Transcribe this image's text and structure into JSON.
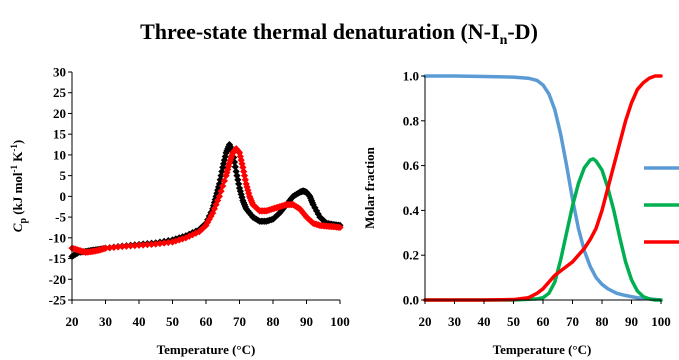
{
  "figure": {
    "title_main": "Three-state thermal denaturation (N-I",
    "title_sub": "n",
    "title_end": "-D)"
  },
  "chart_data": [
    {
      "type": "scatter",
      "xlabel": "Temperature (°C)",
      "ylabel": {
        "c": "C",
        "p": "p",
        "rest": " (kJ mol",
        "sup1": "-1",
        "mid": " K",
        "sup2": "-1",
        "close": ")"
      },
      "xlim": [
        20,
        100
      ],
      "ylim": [
        -25,
        30
      ],
      "xticks": [
        20,
        30,
        40,
        50,
        60,
        70,
        80,
        90,
        100
      ],
      "yticks": [
        30,
        25,
        20,
        15,
        10,
        5,
        0,
        -5,
        -10,
        -15,
        -20,
        -25
      ],
      "grid": false,
      "series": [
        {
          "color": "#000000",
          "marker": "diamond",
          "x": [
            20,
            22,
            24,
            26,
            28,
            30,
            35,
            40,
            45,
            50,
            54,
            58,
            60,
            62,
            63,
            64,
            65,
            66,
            67,
            68,
            69,
            70,
            71,
            72,
            74,
            76,
            78,
            80,
            82,
            84,
            86,
            88,
            89,
            90,
            91,
            92,
            94,
            96,
            98,
            100
          ],
          "y": [
            -14.5,
            -13.5,
            -13.3,
            -13,
            -12.8,
            -12.5,
            -12,
            -11.6,
            -11.2,
            -10.5,
            -9.5,
            -8,
            -6.5,
            -3,
            0,
            3,
            7,
            10.5,
            12.5,
            10.5,
            6,
            2,
            -1,
            -3,
            -5,
            -6,
            -6,
            -5.5,
            -4,
            -2,
            0,
            1,
            1.3,
            1,
            0,
            -2,
            -5,
            -6.5,
            -6.8,
            -7
          ]
        },
        {
          "color": "#ff0000",
          "marker": "diamond",
          "x": [
            20,
            22,
            24,
            26,
            28,
            30,
            35,
            40,
            45,
            50,
            54,
            58,
            60,
            62,
            64,
            66,
            67,
            68,
            69,
            70,
            71,
            72,
            73,
            74,
            76,
            78,
            80,
            82,
            84,
            86,
            88,
            90,
            92,
            94,
            96,
            98,
            100
          ],
          "y": [
            -12.5,
            -13,
            -13.5,
            -13.3,
            -13,
            -12.5,
            -12.1,
            -11.8,
            -11.5,
            -11,
            -10,
            -8.5,
            -7,
            -4,
            0,
            5,
            8,
            10.5,
            11.5,
            10.5,
            7,
            3,
            0,
            -2,
            -3.5,
            -3.5,
            -3,
            -2.5,
            -2,
            -2,
            -3,
            -5,
            -6.5,
            -7,
            -7.2,
            -7.3,
            -7.5
          ]
        }
      ]
    },
    {
      "type": "line",
      "xlabel": "Temperature (°C)",
      "ylabel": "Molar fraction",
      "xlim": [
        20,
        100
      ],
      "ylim": [
        0,
        1
      ],
      "xticks": [
        20,
        30,
        40,
        50,
        60,
        70,
        80,
        90,
        100
      ],
      "yticks": [
        "0.0",
        "0.2",
        "0.4",
        "0.6",
        "0.8",
        "1.0"
      ],
      "grid": false,
      "legend": "right",
      "series": [
        {
          "color": "#5b9bd5",
          "x": [
            20,
            30,
            40,
            50,
            55,
            58,
            60,
            62,
            64,
            66,
            68,
            70,
            72,
            74,
            76,
            78,
            80,
            82,
            85,
            88,
            92,
            96,
            100
          ],
          "y": [
            1.0,
            1.0,
            0.998,
            0.995,
            0.99,
            0.98,
            0.96,
            0.92,
            0.85,
            0.74,
            0.6,
            0.45,
            0.32,
            0.22,
            0.15,
            0.1,
            0.07,
            0.05,
            0.03,
            0.02,
            0.01,
            0.005,
            0.0
          ]
        },
        {
          "color": "#00b050",
          "x": [
            20,
            50,
            58,
            60,
            62,
            64,
            66,
            68,
            70,
            72,
            74,
            76,
            77,
            78,
            80,
            82,
            84,
            86,
            88,
            90,
            92,
            94,
            96,
            98,
            100
          ],
          "y": [
            0.0,
            0.0,
            0.005,
            0.01,
            0.03,
            0.08,
            0.18,
            0.3,
            0.42,
            0.52,
            0.59,
            0.625,
            0.63,
            0.62,
            0.58,
            0.5,
            0.4,
            0.28,
            0.17,
            0.09,
            0.04,
            0.015,
            0.005,
            0.0,
            0.0
          ]
        },
        {
          "color": "#ff0000",
          "x": [
            20,
            40,
            50,
            55,
            58,
            60,
            62,
            64,
            66,
            68,
            70,
            72,
            74,
            76,
            78,
            80,
            82,
            84,
            86,
            88,
            90,
            92,
            94,
            96,
            98,
            100
          ],
          "y": [
            0.0,
            0.0,
            0.002,
            0.01,
            0.03,
            0.05,
            0.08,
            0.11,
            0.13,
            0.15,
            0.17,
            0.2,
            0.23,
            0.27,
            0.32,
            0.4,
            0.5,
            0.6,
            0.7,
            0.8,
            0.88,
            0.94,
            0.97,
            0.99,
            1.0,
            1.0
          ]
        }
      ]
    }
  ]
}
